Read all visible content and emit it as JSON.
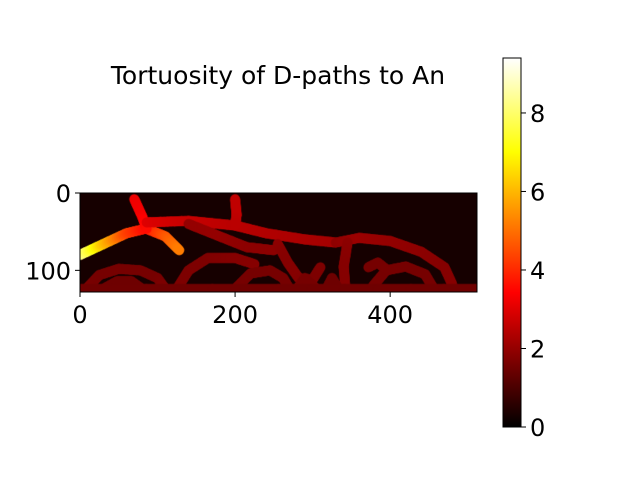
{
  "chart_data": {
    "type": "heatmap",
    "title": "Tortuosity of D-paths to An",
    "xlabel": "",
    "ylabel": "",
    "colormap": "hot",
    "image_extent": {
      "x": [
        0,
        512
      ],
      "y": [
        0,
        128
      ]
    },
    "x_ticks": [
      0,
      200,
      400
    ],
    "y_ticks": [
      0,
      100
    ],
    "colorbar": {
      "range": [
        0,
        9.4
      ],
      "ticks": [
        0,
        2,
        4,
        6,
        8
      ]
    },
    "background_value": 0.3,
    "channels": [
      {
        "path": [
          [
            0,
            80
          ],
          [
            30,
            66
          ],
          [
            60,
            52
          ],
          [
            85,
            46
          ],
          [
            110,
            56
          ],
          [
            128,
            74
          ]
        ],
        "values": [
          8.5,
          6.2,
          4.4,
          3.6,
          4.6,
          5.2
        ]
      },
      {
        "path": [
          [
            70,
            8
          ],
          [
            80,
            30
          ],
          [
            86,
            46
          ]
        ],
        "values": [
          3.2,
          3.3,
          3.6
        ]
      },
      {
        "path": [
          [
            86,
            38
          ],
          [
            140,
            36
          ],
          [
            200,
            42
          ],
          [
            240,
            52
          ],
          [
            290,
            60
          ],
          [
            330,
            64
          ]
        ],
        "values": [
          3.0,
          2.7,
          2.5,
          2.4,
          2.3,
          2.2
        ]
      },
      {
        "path": [
          [
            200,
            8
          ],
          [
            202,
            28
          ],
          [
            200,
            42
          ]
        ],
        "values": [
          2.6,
          2.6,
          2.5
        ]
      },
      {
        "path": [
          [
            140,
            40
          ],
          [
            180,
            56
          ],
          [
            215,
            70
          ],
          [
            250,
            74
          ]
        ],
        "values": [
          2.0,
          2.0,
          1.9,
          1.9
        ]
      },
      {
        "path": [
          [
            330,
            64
          ],
          [
            360,
            58
          ],
          [
            400,
            62
          ],
          [
            440,
            76
          ],
          [
            470,
            96
          ],
          [
            480,
            118
          ]
        ],
        "values": [
          1.9,
          2.1,
          2.0,
          1.9,
          1.8,
          1.8
        ]
      },
      {
        "path": [
          [
            345,
            64
          ],
          [
            340,
            95
          ],
          [
            342,
            120
          ]
        ],
        "values": [
          1.9,
          1.8,
          1.8
        ]
      },
      {
        "path": [
          [
            378,
            120
          ],
          [
            395,
            100
          ],
          [
            420,
            95
          ],
          [
            445,
            105
          ],
          [
            455,
            122
          ]
        ],
        "values": [
          1.6,
          1.6,
          1.6,
          1.6,
          1.6
        ]
      },
      {
        "path": [
          [
            8,
            124
          ],
          [
            25,
            106
          ],
          [
            50,
            98
          ],
          [
            78,
            100
          ],
          [
            100,
            110
          ],
          [
            110,
            124
          ]
        ],
        "values": [
          1.7,
          1.6,
          1.6,
          1.6,
          1.6,
          1.7
        ]
      },
      {
        "path": [
          [
            30,
            124
          ],
          [
            48,
            114
          ],
          [
            66,
            114
          ],
          [
            80,
            124
          ]
        ],
        "values": [
          1.5,
          1.5,
          1.5,
          1.5
        ]
      },
      {
        "path": [
          [
            125,
            124
          ],
          [
            140,
            100
          ],
          [
            165,
            84
          ],
          [
            200,
            84
          ],
          [
            225,
            92
          ]
        ],
        "values": [
          1.7,
          1.7,
          1.7,
          1.8,
          1.8
        ]
      },
      {
        "path": [
          [
            200,
            124
          ],
          [
            220,
            104
          ],
          [
            245,
            100
          ],
          [
            262,
            110
          ],
          [
            270,
            124
          ]
        ],
        "values": [
          1.6,
          1.6,
          1.6,
          1.6,
          1.6
        ]
      },
      {
        "path": [
          [
            255,
            66
          ],
          [
            268,
            90
          ],
          [
            282,
            110
          ],
          [
            300,
            112
          ],
          [
            310,
            96
          ]
        ],
        "values": [
          1.9,
          1.8,
          1.8,
          1.7,
          1.7
        ]
      },
      {
        "path": [
          [
            280,
            124
          ],
          [
            290,
            110
          ],
          [
            305,
            124
          ]
        ],
        "values": [
          1.6,
          1.6,
          1.6
        ]
      },
      {
        "path": [
          [
            318,
            124
          ],
          [
            325,
            110
          ],
          [
            333,
            124
          ]
        ],
        "values": [
          1.5,
          1.5,
          1.5
        ]
      },
      {
        "path": [
          [
            372,
            96
          ],
          [
            384,
            90
          ],
          [
            394,
            98
          ]
        ],
        "values": [
          1.6,
          1.6,
          1.6
        ]
      },
      {
        "path": [
          [
            0,
            124
          ],
          [
            512,
            124
          ]
        ],
        "values": [
          1.5,
          1.5
        ]
      }
    ]
  }
}
